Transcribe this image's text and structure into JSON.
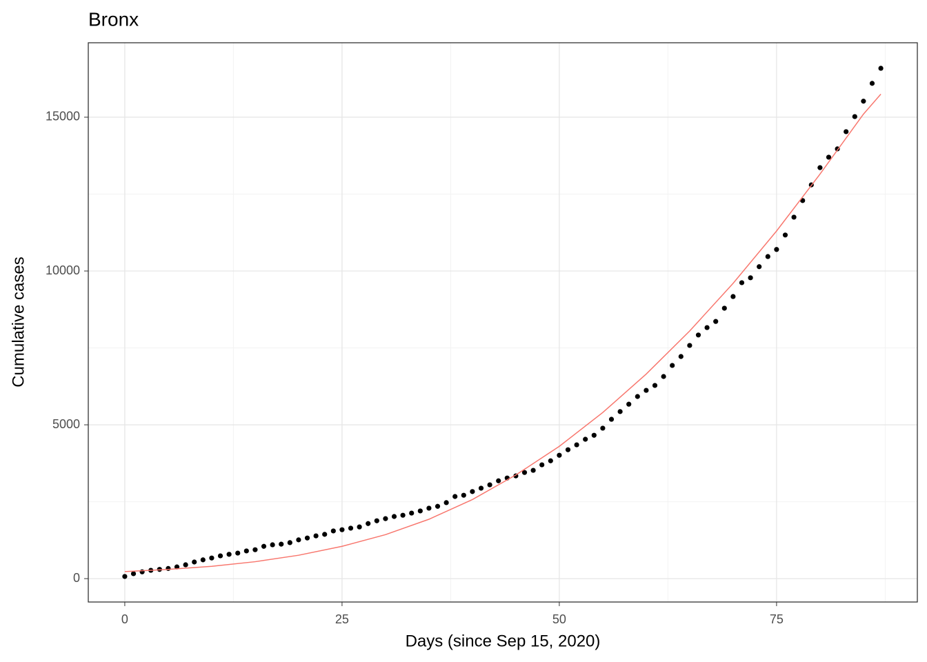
{
  "chart_data": {
    "type": "scatter",
    "title": "Bronx",
    "x_label": "Days (since Sep 15, 2020)",
    "y_label": "Cumulative cases",
    "xlim": [
      -4.2,
      91.2
    ],
    "ylim": [
      -760,
      17420
    ],
    "xticks": [
      0,
      25,
      50,
      75
    ],
    "yticks": [
      0,
      5000,
      10000,
      15000
    ],
    "x_minor_grid": [
      12.5,
      37.5,
      62.5,
      87.5
    ],
    "y_minor_grid": [
      2500,
      7500,
      12500
    ],
    "grid": true,
    "series": [
      {
        "type": "scatter",
        "color": "#000000",
        "x": [
          0,
          1,
          2,
          3,
          4,
          5,
          6,
          7,
          8,
          9,
          10,
          11,
          12,
          13,
          14,
          15,
          16,
          17,
          18,
          19,
          20,
          21,
          22,
          23,
          24,
          25,
          26,
          27,
          28,
          29,
          30,
          31,
          32,
          33,
          34,
          35,
          36,
          37,
          38,
          39,
          40,
          41,
          42,
          43,
          44,
          45,
          46,
          47,
          48,
          49,
          50,
          51,
          52,
          53,
          54,
          55,
          56,
          57,
          58,
          59,
          60,
          61,
          62,
          63,
          64,
          65,
          66,
          67,
          68,
          69,
          70,
          71,
          72,
          73,
          74,
          75,
          76,
          77,
          78,
          79,
          80,
          81,
          82,
          83,
          84,
          85,
          86,
          87
        ],
        "values": [
          70,
          160,
          220,
          270,
          300,
          330,
          380,
          450,
          540,
          610,
          670,
          740,
          790,
          830,
          900,
          940,
          1050,
          1100,
          1120,
          1170,
          1260,
          1320,
          1390,
          1440,
          1550,
          1590,
          1640,
          1680,
          1790,
          1880,
          1950,
          2020,
          2060,
          2130,
          2200,
          2290,
          2350,
          2470,
          2670,
          2710,
          2830,
          2940,
          3050,
          3180,
          3270,
          3340,
          3450,
          3520,
          3700,
          3830,
          4010,
          4190,
          4350,
          4530,
          4660,
          4890,
          5180,
          5430,
          5670,
          5920,
          6120,
          6280,
          6570,
          6930,
          7220,
          7580,
          7920,
          8160,
          8360,
          8790,
          9170,
          9620,
          9780,
          10140,
          10470,
          10700,
          11170,
          11750,
          12290,
          12800,
          13360,
          13700,
          13970,
          14530,
          15020,
          15520,
          16100,
          16590
        ]
      },
      {
        "type": "line",
        "color": "#f8766d",
        "x": [
          0,
          5,
          10,
          15,
          20,
          25,
          30,
          35,
          40,
          45,
          50,
          55,
          60,
          65,
          70,
          75,
          80,
          85,
          87
        ],
        "values": [
          230,
          300,
          400,
          550,
          760,
          1050,
          1430,
          1930,
          2570,
          3370,
          4300,
          5400,
          6650,
          8050,
          9600,
          11300,
          13150,
          15100,
          15750
        ]
      }
    ]
  }
}
